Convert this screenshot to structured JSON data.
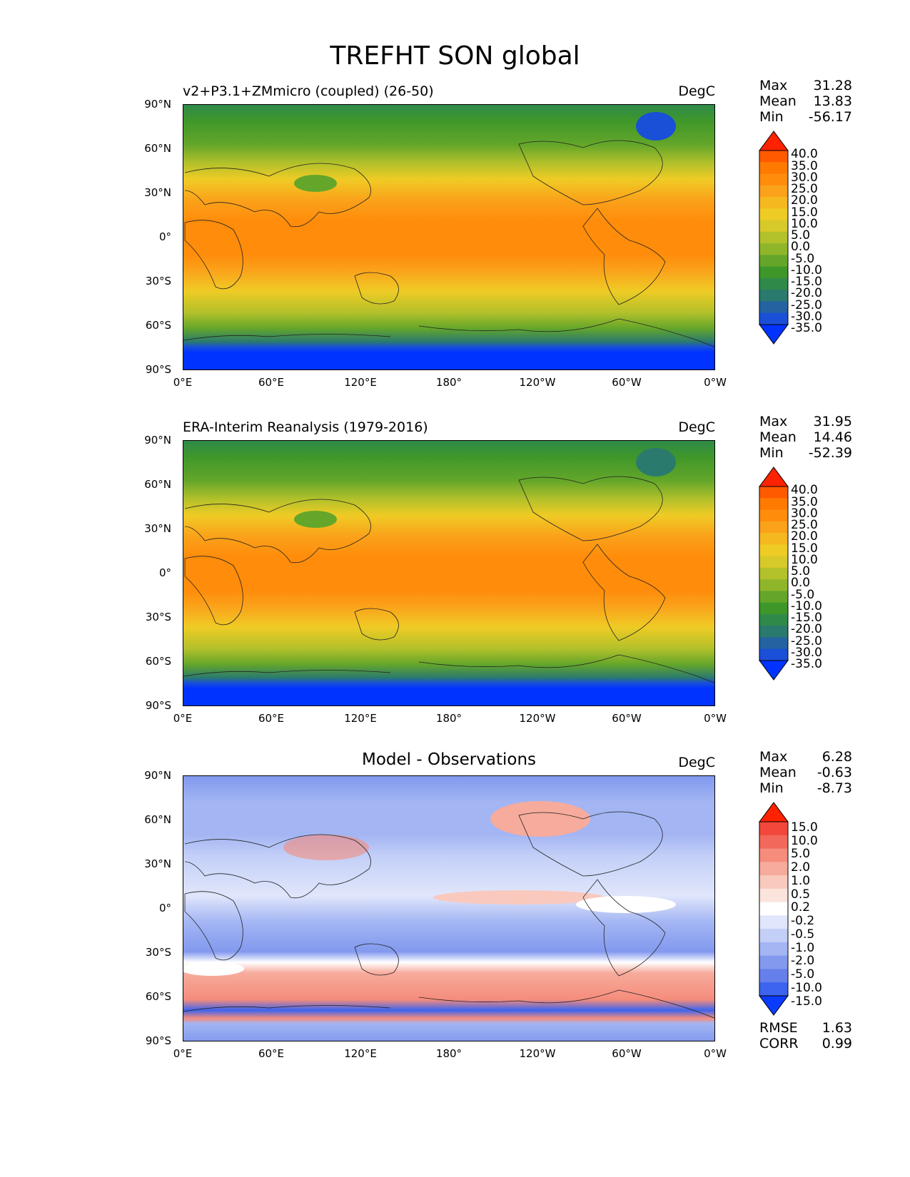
{
  "title": "TREFHT SON global",
  "chart_data": [
    {
      "type": "heatmap",
      "subtitle_left": "v2+P3.1+ZMmicro (coupled) (26-50)",
      "units": "DegC",
      "stats": [
        {
          "label": "Max",
          "value": "31.28"
        },
        {
          "label": "Mean",
          "value": "13.83"
        },
        {
          "label": "Min",
          "value": "-56.17"
        }
      ],
      "colorbar_levels": [
        "40.0",
        "35.0",
        "30.0",
        "25.0",
        "20.0",
        "15.0",
        "10.0",
        "5.0",
        "0.0",
        "-5.0",
        "-10.0",
        "-15.0",
        "-20.0",
        "-25.0",
        "-30.0",
        "-35.0"
      ],
      "colorbar_colors": [
        "#ff2200",
        "#ff5a00",
        "#ff7a00",
        "#ff8c0a",
        "#fba11a",
        "#f5b81f",
        "#efcb25",
        "#d8c92a",
        "#b3c12a",
        "#8fb62a",
        "#64a62a",
        "#3f972a",
        "#2f8a4a",
        "#2a7a6e",
        "#2462a2",
        "#1a4fd8",
        "#0033ff"
      ],
      "y_ticks": [
        "90°N",
        "60°N",
        "30°N",
        "0°",
        "30°S",
        "60°S",
        "90°S"
      ],
      "x_ticks": [
        "0°E",
        "60°E",
        "120°E",
        "180°",
        "120°W",
        "60°W",
        "0°W"
      ]
    },
    {
      "type": "heatmap",
      "subtitle_left": "ERA-Interim Reanalysis (1979-2016)",
      "units": "DegC",
      "stats": [
        {
          "label": "Max",
          "value": "31.95"
        },
        {
          "label": "Mean",
          "value": "14.46"
        },
        {
          "label": "Min",
          "value": "-52.39"
        }
      ],
      "colorbar_levels": [
        "40.0",
        "35.0",
        "30.0",
        "25.0",
        "20.0",
        "15.0",
        "10.0",
        "5.0",
        "0.0",
        "-5.0",
        "-10.0",
        "-15.0",
        "-20.0",
        "-25.0",
        "-30.0",
        "-35.0"
      ],
      "colorbar_colors": [
        "#ff2200",
        "#ff5a00",
        "#ff7a00",
        "#ff8c0a",
        "#fba11a",
        "#f5b81f",
        "#efcb25",
        "#d8c92a",
        "#b3c12a",
        "#8fb62a",
        "#64a62a",
        "#3f972a",
        "#2f8a4a",
        "#2a7a6e",
        "#2462a2",
        "#1a4fd8",
        "#0033ff"
      ],
      "y_ticks": [
        "90°N",
        "60°N",
        "30°N",
        "0°",
        "30°S",
        "60°S",
        "90°S"
      ],
      "x_ticks": [
        "0°E",
        "60°E",
        "120°E",
        "180°",
        "120°W",
        "60°W",
        "0°W"
      ]
    },
    {
      "type": "heatmap",
      "subtitle_center": "Model - Observations",
      "units": "DegC",
      "stats": [
        {
          "label": "Max",
          "value": "6.28"
        },
        {
          "label": "Mean",
          "value": "-0.63"
        },
        {
          "label": "Min",
          "value": "-8.73"
        }
      ],
      "colorbar_levels": [
        "15.0",
        "10.0",
        "5.0",
        "2.0",
        "1.0",
        "0.5",
        "0.2",
        "-0.2",
        "-0.5",
        "-1.0",
        "-2.0",
        "-5.0",
        "-10.0",
        "-15.0"
      ],
      "colorbar_colors": [
        "#ff2200",
        "#f2473a",
        "#f2685a",
        "#f58c7c",
        "#f7ab9c",
        "#f9c9bd",
        "#fbe4dc",
        "#ffffff",
        "#e0e6fb",
        "#c3cff7",
        "#a3b5f3",
        "#8299ee",
        "#6580ea",
        "#3d64ef",
        "#0a3cff"
      ],
      "y_ticks": [
        "90°N",
        "60°N",
        "30°N",
        "0°",
        "30°S",
        "60°S",
        "90°S"
      ],
      "x_ticks": [
        "0°E",
        "60°E",
        "120°E",
        "180°",
        "120°W",
        "60°W",
        "0°W"
      ],
      "extra_stats": [
        {
          "label": "RMSE",
          "value": "1.63"
        },
        {
          "label": "CORR",
          "value": "0.99"
        }
      ]
    }
  ]
}
